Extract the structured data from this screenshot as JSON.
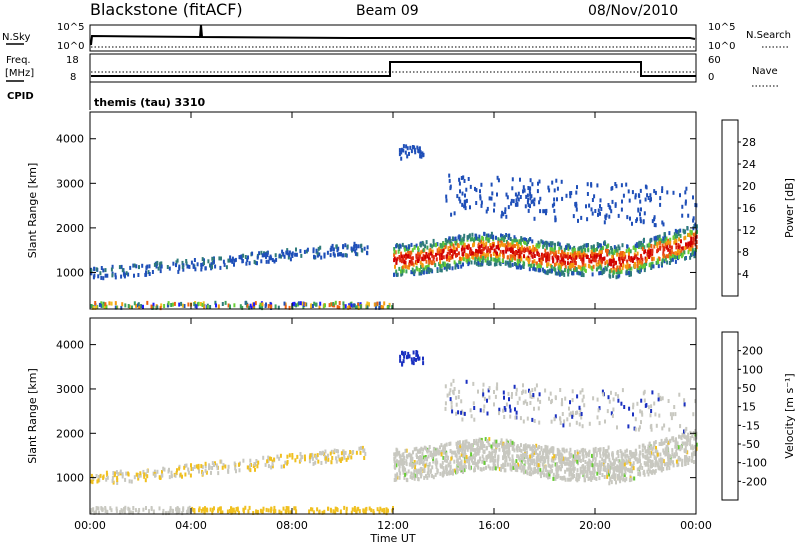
{
  "header": {
    "station": "Blackstone (fitACF)",
    "beam": "Beam 09",
    "date": "08/Nov/2010"
  },
  "top_panels": {
    "nsky_label": "N.Sky",
    "nsky_ticks": [
      "10^5",
      "10^0"
    ],
    "nsearch_label": "N.Search",
    "nsearch_ticks": [
      "10^5",
      "10^0"
    ],
    "freq_label_line1": "Freq.",
    "freq_label_line2": "[MHz]",
    "freq_ticks": [
      "18",
      "8"
    ],
    "nave_label": "Nave",
    "nave_ticks": [
      "60",
      "0"
    ],
    "cpid_label": "CPID",
    "cpid_text": "themis (tau) 3310"
  },
  "chart_data": [
    {
      "type": "heatmap",
      "name": "power",
      "ylabel": "Slant Range [km]",
      "yticks": [
        1000,
        2000,
        3000,
        4000
      ],
      "ylim": [
        180,
        4600
      ],
      "colorbar_label": "Power [dB]",
      "colorbar_ticks": [
        "4",
        "8",
        "12",
        "16",
        "20",
        "24",
        "28"
      ],
      "colors": [
        "#1a1aff",
        "#1f4fb8",
        "#2e7a7a",
        "#3aa05a",
        "#66cc33",
        "#f0c020",
        "#f59a10",
        "#f06010",
        "#e02a10",
        "#d00000"
      ],
      "xlabel": "",
      "xticks": [
        "00:00",
        "04:00",
        "08:00",
        "12:00",
        "16:00",
        "20:00",
        "00:00"
      ]
    },
    {
      "type": "heatmap",
      "name": "velocity",
      "ylabel": "Slant Range [km]",
      "yticks": [
        1000,
        2000,
        3000,
        4000
      ],
      "ylim": [
        180,
        4600
      ],
      "colorbar_label": "Velocity [m s⁻¹]",
      "colorbar_ticks": [
        "200",
        "100",
        "50",
        "15",
        "-15",
        "-50",
        "-100",
        "-200"
      ],
      "colors": [
        "#1a30c0",
        "#2a60c8",
        "#3a9048",
        "#66cc33",
        "#c8c8c0",
        "#f0c020",
        "#f59a10",
        "#f06010",
        "#e02a10",
        "#d00000"
      ],
      "xlabel": "Time UT",
      "xticks": [
        "00:00",
        "04:00",
        "08:00",
        "12:00",
        "16:00",
        "20:00",
        "00:00"
      ]
    }
  ],
  "colors": {
    "axis": "#000000",
    "background": "#ffffff"
  }
}
